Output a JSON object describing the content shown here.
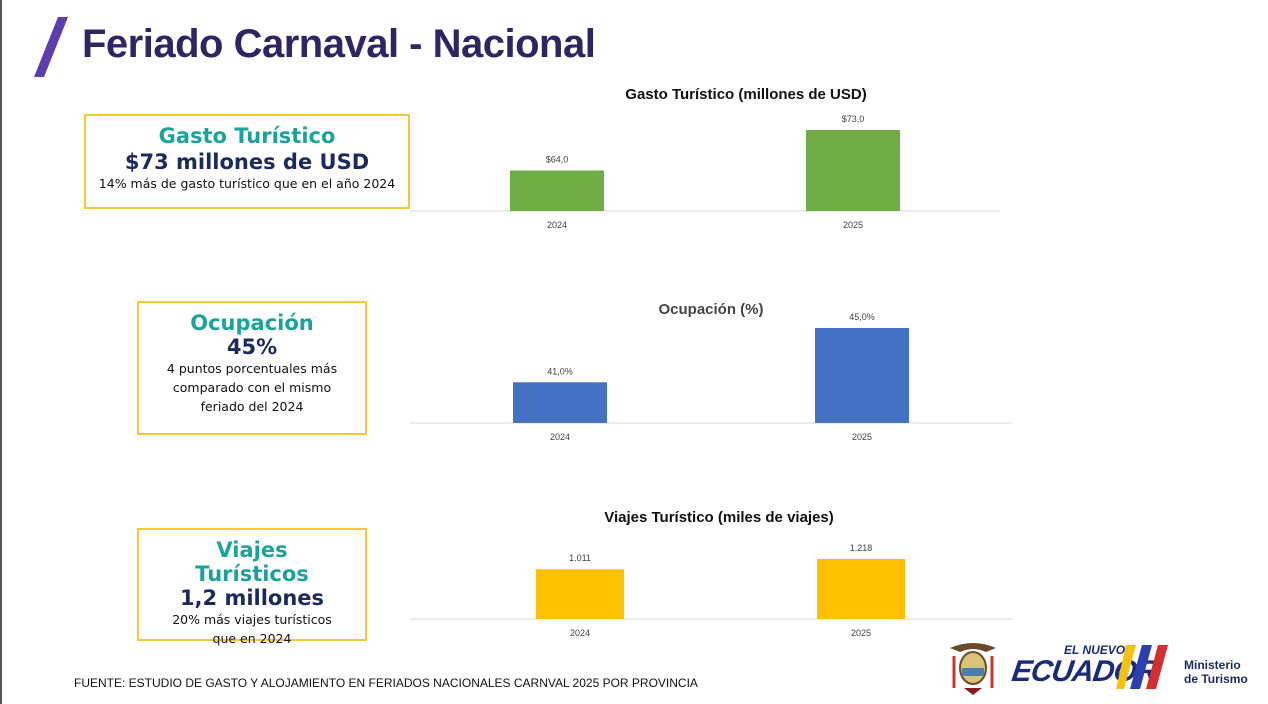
{
  "title": "Feriado Carnaval - Nacional",
  "cards": [
    {
      "heading": "Gasto Turístico",
      "value": "$73  millones de USD",
      "desc": "14% más de gasto turístico que en el año 2024"
    },
    {
      "heading": "Ocupación",
      "value": "45%",
      "desc": "4 puntos porcentuales más comparado con el mismo feriado del 2024"
    },
    {
      "heading": "Viajes Turísticos",
      "value": "1,2 millones",
      "desc": "20% más viajes turísticos que en 2024"
    }
  ],
  "chart_data": [
    {
      "type": "bar",
      "title": "Gasto Turístico (millones de USD)",
      "categories": [
        "2024",
        "2025"
      ],
      "values": [
        64.0,
        73.0
      ],
      "labels": [
        "$64,0",
        "$73,0"
      ],
      "ylim": [
        55,
        73
      ],
      "color": "#70ad47",
      "grid": false
    },
    {
      "type": "bar",
      "title": "Ocupación (%)",
      "categories": [
        "2024",
        "2025"
      ],
      "values": [
        41.0,
        45.0
      ],
      "labels": [
        "41,0%",
        "45,0%"
      ],
      "ylim": [
        38,
        45
      ],
      "color": "#4472c4",
      "grid": false
    },
    {
      "type": "bar",
      "title": "Viajes Turístico (miles de viajes)",
      "categories": [
        "2024",
        "2025"
      ],
      "values": [
        1011,
        1218
      ],
      "labels": [
        "1.011",
        "1.218"
      ],
      "ylim": [
        0,
        1218
      ],
      "color": "#ffc000",
      "grid": false
    }
  ],
  "source": "FUENTE: ESTUDIO DE GASTO Y ALOJAMIENTO EN FERIADOS NACIONALES CARNVAL 2025 POR PROVINCIA",
  "logo": {
    "tagline": "EL NUEVO",
    "name": "ECUADOR",
    "ministry_line1": "Ministerio",
    "ministry_line2": "de Turismo"
  }
}
